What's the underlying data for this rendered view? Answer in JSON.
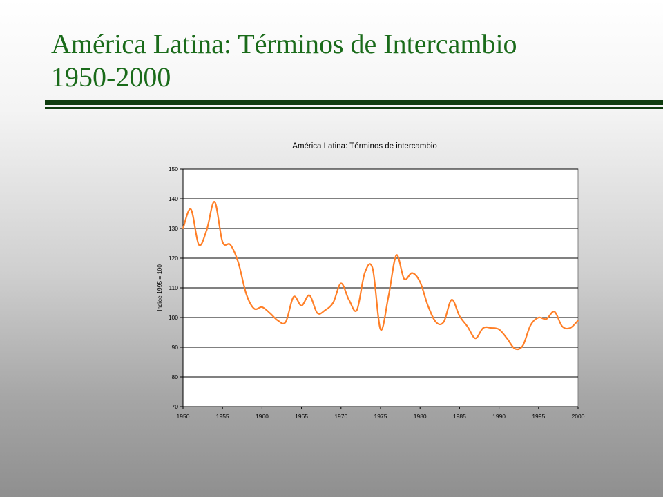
{
  "slide": {
    "title_line1": "América Latina: Términos de Intercambio",
    "title_line2": "1950-2000",
    "title_color": "#1a6b1a",
    "rule_color": "#0f3d0f"
  },
  "chart_data": {
    "type": "line",
    "title": "América Latina: Términos de intercambio",
    "xlabel": "",
    "ylabel": "Indice 1995 = 100",
    "xlim": [
      1950,
      2000
    ],
    "ylim": [
      70,
      150
    ],
    "x_ticks": [
      1950,
      1955,
      1960,
      1965,
      1970,
      1975,
      1980,
      1985,
      1990,
      1995,
      2000
    ],
    "y_ticks": [
      70,
      80,
      90,
      100,
      110,
      120,
      130,
      140,
      150
    ],
    "grid": true,
    "legend": "none",
    "plot_background": "#ffffff",
    "series": [
      {
        "color": "#ff7f27",
        "x": [
          1950,
          1951,
          1952,
          1953,
          1954,
          1955,
          1956,
          1957,
          1958,
          1959,
          1960,
          1961,
          1962,
          1963,
          1964,
          1965,
          1966,
          1967,
          1968,
          1969,
          1970,
          1971,
          1972,
          1973,
          1974,
          1975,
          1976,
          1977,
          1978,
          1979,
          1980,
          1981,
          1982,
          1983,
          1984,
          1985,
          1986,
          1987,
          1988,
          1989,
          1990,
          1991,
          1992,
          1993,
          1994,
          1995,
          1996,
          1997,
          1998,
          1999,
          2000
        ],
        "y": [
          130,
          136.5,
          124.5,
          129.5,
          139,
          125.5,
          124.5,
          118.5,
          108,
          103,
          103.5,
          101.5,
          99,
          98.5,
          107,
          104,
          107.5,
          101.5,
          102.5,
          105,
          111.5,
          106,
          102.5,
          115,
          116.5,
          96,
          107,
          121,
          113,
          115,
          112,
          104,
          98.5,
          98.5,
          106,
          100.5,
          97,
          93,
          96.5,
          96.5,
          96,
          93,
          89.5,
          90.5,
          97.5,
          100,
          99.5,
          102,
          97,
          96.5,
          99
        ]
      }
    ]
  }
}
